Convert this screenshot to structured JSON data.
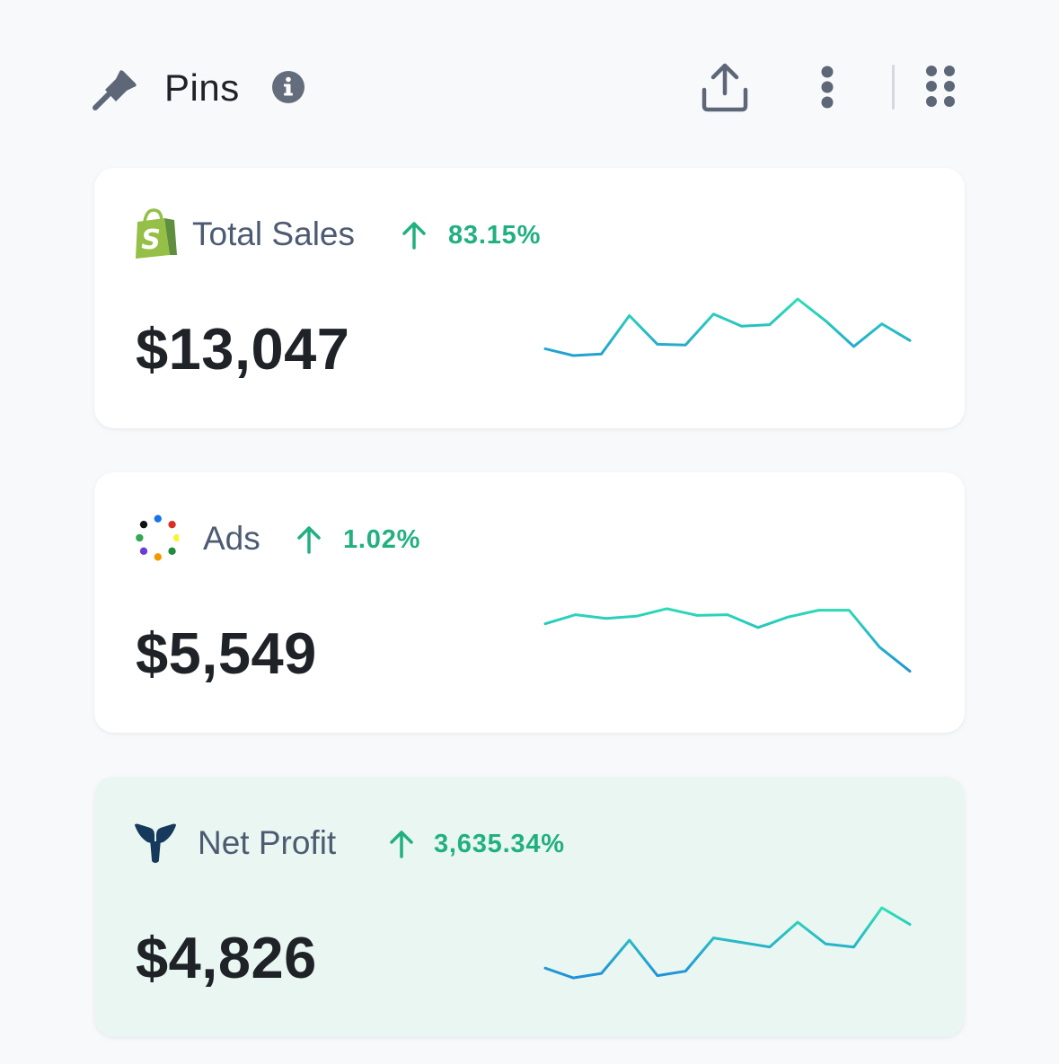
{
  "header": {
    "title": "Pins",
    "icons": {
      "pin": "pin-icon",
      "info": "info-icon",
      "share": "share-upload-icon",
      "more": "more-vertical-icon",
      "grid": "grid-dots-icon"
    }
  },
  "colors": {
    "trend_up": "#21b07f",
    "spark_start": "#1e84e0",
    "spark_end": "#2fe6b0",
    "card_highlight": "#eaf6f1"
  },
  "cards": [
    {
      "label": "Total Sales",
      "source_icon": "shopify-icon",
      "trend_icon": "arrow-up-icon",
      "trend": "83.15%",
      "value": "$13,047",
      "sparkline": [
        34,
        25,
        27,
        78,
        40,
        39,
        80,
        64,
        66,
        100,
        71,
        37,
        67,
        45
      ]
    },
    {
      "label": "Ads",
      "source_icon": "ads-dots-icon",
      "trend_icon": "arrow-up-icon",
      "trend": "1.02%",
      "value": "$5,549",
      "sparkline": [
        73,
        85,
        80,
        83,
        93,
        84,
        85,
        68,
        82,
        91,
        91,
        42,
        10
      ]
    },
    {
      "label": "Net Profit",
      "source_icon": "triple-whale-icon",
      "trend_icon": "arrow-up-icon",
      "trend": "3,635.34%",
      "value": "$4,826",
      "sparkline": [
        20,
        7,
        13,
        57,
        10,
        16,
        60,
        54,
        48,
        81,
        52,
        48,
        100,
        78
      ]
    }
  ]
}
